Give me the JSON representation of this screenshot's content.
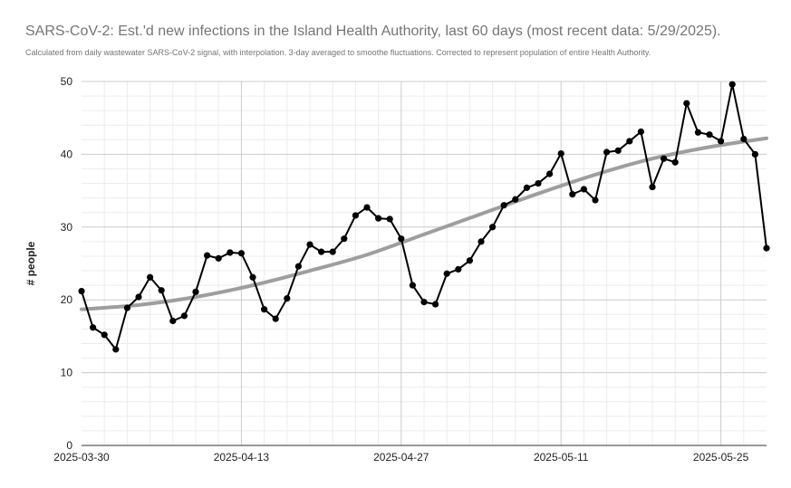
{
  "chart_data": {
    "type": "line",
    "title": "SARS-CoV-2: Est.'d new infections in the Island Health Authority, last 60 days (most recent data: 5/29/2025).",
    "subtitle": "Calculated from daily wastewater SARS-CoV-2 signal, with interpolation. 3-day averaged to smoothe fluctuations. Corrected to represent population of entire Health Authority.",
    "xlabel": "",
    "ylabel": "# people",
    "x_axis_type": "date",
    "xlim": [
      "2025-03-30",
      "2025-05-29"
    ],
    "ylim": [
      0,
      50
    ],
    "yticks": [
      0,
      10,
      20,
      30,
      40,
      50
    ],
    "xticks": [
      "2025-03-30",
      "2025-04-13",
      "2025-04-27",
      "2025-05-11",
      "2025-05-25"
    ],
    "grid": true,
    "legend": "none",
    "series": [
      {
        "color": "#000000",
        "style": "line-with-markers",
        "x": [
          "2025-03-30",
          "2025-03-31",
          "2025-04-01",
          "2025-04-02",
          "2025-04-03",
          "2025-04-04",
          "2025-04-05",
          "2025-04-06",
          "2025-04-07",
          "2025-04-08",
          "2025-04-09",
          "2025-04-10",
          "2025-04-11",
          "2025-04-12",
          "2025-04-13",
          "2025-04-14",
          "2025-04-15",
          "2025-04-16",
          "2025-04-17",
          "2025-04-18",
          "2025-04-19",
          "2025-04-20",
          "2025-04-21",
          "2025-04-22",
          "2025-04-23",
          "2025-04-24",
          "2025-04-25",
          "2025-04-26",
          "2025-04-27",
          "2025-04-28",
          "2025-04-29",
          "2025-04-30",
          "2025-05-01",
          "2025-05-02",
          "2025-05-03",
          "2025-05-04",
          "2025-05-05",
          "2025-05-06",
          "2025-05-07",
          "2025-05-08",
          "2025-05-09",
          "2025-05-10",
          "2025-05-11",
          "2025-05-12",
          "2025-05-13",
          "2025-05-14",
          "2025-05-15",
          "2025-05-16",
          "2025-05-17",
          "2025-05-18",
          "2025-05-19",
          "2025-05-20",
          "2025-05-21",
          "2025-05-22",
          "2025-05-23",
          "2025-05-24",
          "2025-05-25",
          "2025-05-26",
          "2025-05-27",
          "2025-05-28",
          "2025-05-29"
        ],
        "values": [
          21.2,
          16.2,
          15.2,
          13.2,
          18.9,
          20.4,
          23.1,
          21.3,
          17.1,
          17.8,
          21.1,
          26.1,
          25.7,
          26.5,
          26.4,
          23.1,
          18.7,
          17.4,
          20.2,
          24.6,
          27.6,
          26.6,
          26.6,
          28.4,
          31.6,
          32.7,
          31.2,
          31.1,
          28.4,
          22.0,
          19.7,
          19.4,
          23.6,
          24.2,
          25.4,
          28.0,
          30.0,
          33.0,
          33.8,
          35.4,
          36.0,
          37.3,
          40.1,
          34.5,
          35.2,
          33.7,
          40.3,
          40.5,
          41.8,
          43.1,
          35.5,
          39.4,
          38.9,
          47.0,
          43.0,
          42.7,
          41.8,
          49.6,
          42.1,
          40.0,
          27.1
        ]
      },
      {
        "color": "#9e9e9e",
        "style": "trend-line",
        "x": [
          "2025-03-30",
          "2025-04-04",
          "2025-04-09",
          "2025-04-14",
          "2025-04-19",
          "2025-04-24",
          "2025-04-29",
          "2025-05-04",
          "2025-05-09",
          "2025-05-14",
          "2025-05-19",
          "2025-05-24",
          "2025-05-29"
        ],
        "values": [
          18.7,
          19.3,
          20.4,
          22.0,
          24.0,
          26.2,
          29.0,
          31.8,
          34.6,
          37.2,
          39.4,
          41.0,
          42.2
        ]
      }
    ]
  }
}
